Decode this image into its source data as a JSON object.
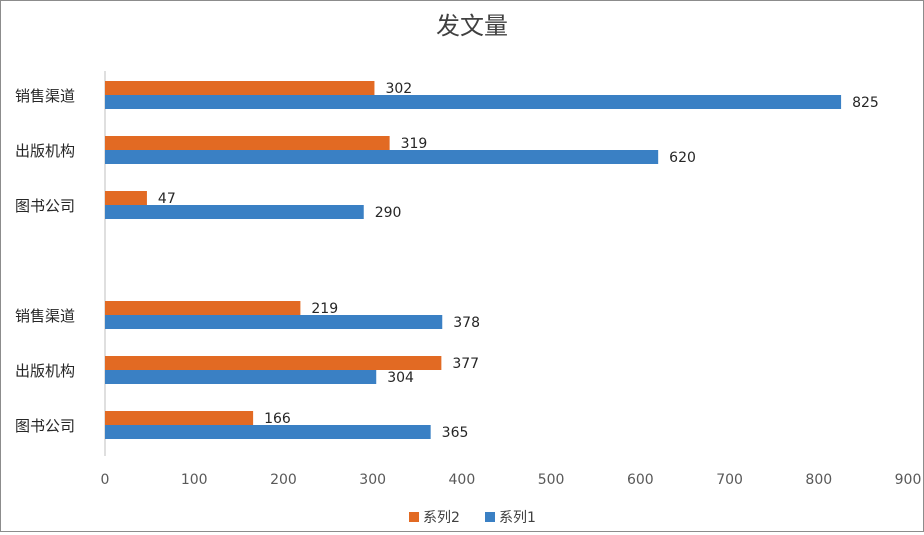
{
  "chart_data": {
    "type": "bar",
    "orientation": "horizontal",
    "title": "发文量",
    "groups": [
      {
        "categories": [
          "销售渠道",
          "出版机构",
          "图书公司"
        ]
      },
      {
        "categories": [
          "销售渠道",
          "出版机构",
          "图书公司"
        ]
      }
    ],
    "series": [
      {
        "name": "系列2",
        "color": "#E26A23",
        "values": [
          [
            302,
            319,
            47
          ],
          [
            219,
            377,
            166
          ]
        ]
      },
      {
        "name": "系列1",
        "color": "#3A80C4",
        "values": [
          [
            825,
            620,
            290
          ],
          [
            378,
            304,
            365
          ]
        ]
      }
    ],
    "xlim": [
      0,
      900
    ],
    "xticks": [
      "0",
      "100",
      "200",
      "300",
      "400",
      "500",
      "600",
      "700",
      "800",
      "900"
    ],
    "grid": false,
    "legend_position": "bottom",
    "data_labels": true
  }
}
